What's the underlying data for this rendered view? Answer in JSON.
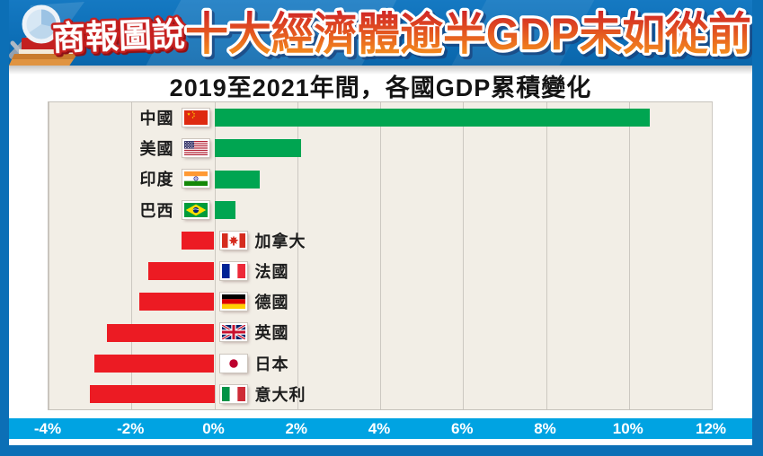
{
  "header": {
    "logo_text": "商報圖說",
    "title": "十大經濟體逾半GDP未如從前"
  },
  "chart_data": {
    "type": "bar",
    "orientation": "horizontal",
    "title": "2019至2021年間，各國GDP累積變化",
    "categories": [
      "中國",
      "美國",
      "印度",
      "巴西",
      "加拿大",
      "法國",
      "德國",
      "英國",
      "日本",
      "意大利"
    ],
    "values": [
      10.5,
      2.1,
      1.1,
      0.5,
      -0.8,
      -1.6,
      -1.8,
      -2.6,
      -2.9,
      -3.0
    ],
    "unit": "%",
    "flags": [
      "china",
      "usa",
      "india",
      "brazil",
      "canada",
      "france",
      "germany",
      "uk",
      "japan",
      "italy"
    ],
    "xlim": [
      -4,
      12
    ],
    "x_ticks": [
      "-4%",
      "-2%",
      "0%",
      "2%",
      "4%",
      "6%",
      "8%",
      "10%",
      "12%"
    ],
    "x_tick_values": [
      -4,
      -2,
      0,
      2,
      4,
      6,
      8,
      10,
      12
    ],
    "grid": true,
    "legend": null,
    "positive_color": "#00a551",
    "negative_color": "#ec1b23"
  },
  "colors": {
    "frame_blue": "#0c6fb6",
    "axis_band_cyan": "#00a3e2",
    "plot_background": "#f2eee6",
    "gridline": "#ccc8c1",
    "title_gradient_top": "#ce2127",
    "title_gradient_bottom": "#f8991d"
  }
}
